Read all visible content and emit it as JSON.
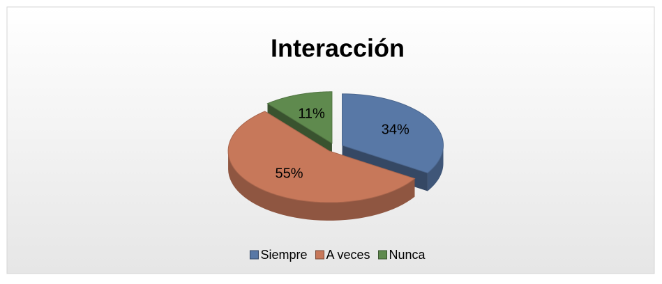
{
  "chart_data": {
    "type": "pie",
    "title": "Interacción",
    "categories": [
      "Siempre",
      "A veces",
      "Nunca"
    ],
    "values": [
      34,
      55,
      11
    ],
    "value_labels": [
      "34%",
      "55%",
      "11%"
    ],
    "colors": [
      "#5878a6",
      "#c7785a",
      "#5f8a4e"
    ],
    "legend": "bottom"
  }
}
